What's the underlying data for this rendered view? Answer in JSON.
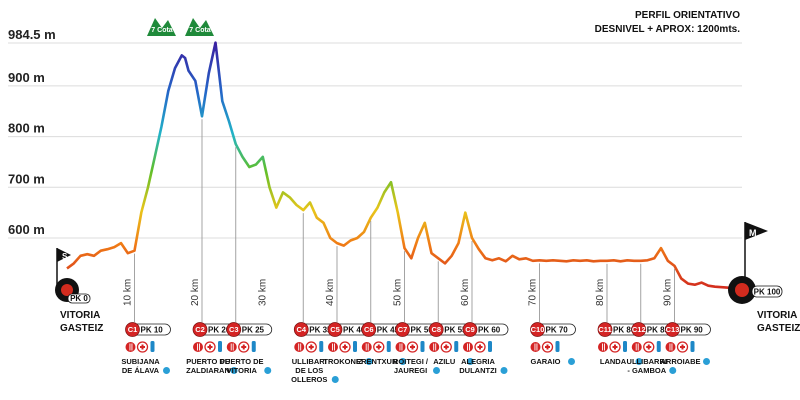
{
  "header": {
    "title": "PERFIL ORIENTATIVO",
    "subtitle": "DESNIVEL + APROX: 1200mts."
  },
  "chart_data": {
    "type": "area",
    "title": "PERFIL ORIENTATIVO",
    "subtitle": "DESNIVEL + APROX: 1200mts.",
    "y_ticks": [
      {
        "value": 984.5,
        "label": "984.5 m"
      },
      {
        "value": 900,
        "label": "900 m"
      },
      {
        "value": 800,
        "label": "800 m"
      },
      {
        "value": 700,
        "label": "700 m"
      },
      {
        "value": 600,
        "label": "600 m"
      }
    ],
    "x_ticks": [
      {
        "value": 10,
        "label": "10 km"
      },
      {
        "value": 20,
        "label": "20 km"
      },
      {
        "value": 30,
        "label": "30 km"
      },
      {
        "value": 40,
        "label": "40 km"
      },
      {
        "value": 50,
        "label": "50 km"
      },
      {
        "value": 60,
        "label": "60 km"
      },
      {
        "value": 70,
        "label": "70 km"
      },
      {
        "value": 80,
        "label": "80 km"
      },
      {
        "value": 90,
        "label": "90 km"
      }
    ],
    "xlim": [
      0,
      100
    ],
    "ylim": [
      500,
      985
    ],
    "series": [
      {
        "x": [
          0,
          1,
          2,
          3,
          4,
          5,
          6,
          7,
          8,
          9,
          10,
          11,
          12,
          13,
          14,
          15,
          16,
          17,
          17.5,
          18,
          19,
          20,
          21,
          22,
          23,
          24,
          25,
          26,
          27,
          28,
          29,
          30,
          31,
          32,
          33,
          34,
          35,
          36,
          37,
          38,
          39,
          40,
          41,
          42,
          43,
          44,
          45,
          46,
          47,
          48,
          49,
          50,
          51,
          52,
          53,
          54,
          55,
          56,
          57,
          58,
          59,
          60,
          61,
          62,
          63,
          64,
          65,
          66,
          67,
          68,
          69,
          70,
          71,
          72,
          73,
          74,
          75,
          76,
          77,
          78,
          79,
          80,
          81,
          82,
          83,
          84,
          85,
          86,
          87,
          88,
          89,
          90,
          91,
          92,
          93,
          94,
          95,
          96,
          97,
          98,
          99,
          100
        ],
        "y": [
          540,
          550,
          565,
          568,
          565,
          575,
          578,
          582,
          590,
          570,
          575,
          650,
          700,
          760,
          820,
          890,
          935,
          960,
          955,
          930,
          910,
          840,
          925,
          985,
          870,
          830,
          785,
          760,
          740,
          745,
          760,
          700,
          660,
          690,
          680,
          665,
          655,
          670,
          640,
          630,
          600,
          590,
          585,
          595,
          600,
          612,
          640,
          660,
          690,
          710,
          650,
          580,
          560,
          600,
          630,
          570,
          560,
          550,
          565,
          590,
          650,
          600,
          578,
          560,
          556,
          560,
          554,
          565,
          558,
          560,
          555,
          556,
          555,
          556,
          555,
          554,
          556,
          555,
          556,
          554,
          555,
          555,
          556,
          554,
          556,
          555,
          555,
          556,
          560,
          580,
          555,
          545,
          520,
          510,
          508,
          512,
          506,
          504,
          503,
          502,
          501,
          500
        ]
      }
    ],
    "markers": {
      "start_flag": "S",
      "end_flag": "M",
      "start_pk": "PK 0",
      "end_pk": "PK 100",
      "start_city": [
        "VITORIA",
        "GASTEIZ"
      ],
      "end_city": [
        "VITORIA",
        "GASTEIZ"
      ],
      "summit_badge_1": "7 Cota",
      "summit_badge_2": "7 Cota"
    },
    "checkpoints": [
      {
        "code": "C1",
        "pk": "PK 10",
        "x": 10,
        "places": [
          "SUBIJANA",
          "DE ÁLAVA"
        ]
      },
      {
        "code": "C2",
        "pk": "PK 20",
        "x": 20,
        "places": [
          "PUERTO DE",
          "ZALDIARAN"
        ]
      },
      {
        "code": "C3",
        "pk": "PK 25",
        "x": 25,
        "places": [
          "PUERTO DE",
          "VITORIA"
        ]
      },
      {
        "code": "C4",
        "pk": "PK 35",
        "x": 35,
        "places": [
          "ULLIBARI",
          "DE LOS",
          "OLLEROS"
        ]
      },
      {
        "code": "C5",
        "pk": "PK 40",
        "x": 40,
        "places": [
          "TROKONIZ"
        ]
      },
      {
        "code": "C6",
        "pk": "PK 45",
        "x": 45,
        "places": [
          "ERENTXUN"
        ]
      },
      {
        "code": "C7",
        "pk": "PK 50",
        "x": 50,
        "places": [
          "ROITEGI /",
          "JAUREGI"
        ]
      },
      {
        "code": "C8",
        "pk": "PK 55",
        "x": 55,
        "places": [
          "AZILU"
        ]
      },
      {
        "code": "C9",
        "pk": "PK 60",
        "x": 60,
        "places": [
          "ALEGRIA",
          "DULANTZI"
        ]
      },
      {
        "code": "C10",
        "pk": "PK 70",
        "x": 70,
        "places": [
          "GARAIO"
        ]
      },
      {
        "code": "C11",
        "pk": "PK 80",
        "x": 80,
        "places": [
          "LANDA"
        ]
      },
      {
        "code": "C12",
        "pk": "PK 85",
        "x": 85,
        "places": [
          "ULLIBARRI",
          "- GAMBOA"
        ]
      },
      {
        "code": "C13",
        "pk": "PK 90",
        "x": 90,
        "places": [
          "ARROIABE"
        ]
      }
    ]
  }
}
